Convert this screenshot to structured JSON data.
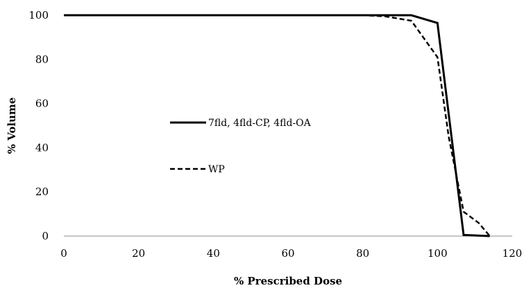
{
  "chart_data": {
    "type": "line",
    "title": "",
    "xlabel": "% Prescribed Dose",
    "ylabel": "% Volume",
    "xlim": [
      0,
      120
    ],
    "ylim": [
      0,
      100
    ],
    "x_ticks": [
      0,
      20,
      40,
      60,
      80,
      100,
      120
    ],
    "y_ticks": [
      0,
      20,
      40,
      60,
      80,
      100
    ],
    "x_tick_labels": [
      "0",
      "20",
      "40",
      "60",
      "80",
      "100",
      "120"
    ],
    "y_tick_labels": [
      "0",
      "20",
      "40",
      "60",
      "80",
      "100"
    ],
    "grid": false,
    "legend_position": "center-left",
    "series": [
      {
        "name": "7fld, 4fld-CP, 4fld-OA",
        "line_style": "solid",
        "color": "#000000",
        "x": [
          0,
          80,
          93,
          100,
          107,
          114
        ],
        "y": [
          100,
          100,
          100,
          96.5,
          0.5,
          0
        ]
      },
      {
        "name": "WP",
        "line_style": "dashed",
        "color": "#000000",
        "x": [
          0,
          80,
          86,
          93,
          100,
          103,
          107,
          111,
          114
        ],
        "y": [
          100,
          100,
          99.5,
          97.5,
          81,
          45,
          11,
          6,
          0
        ]
      }
    ]
  }
}
